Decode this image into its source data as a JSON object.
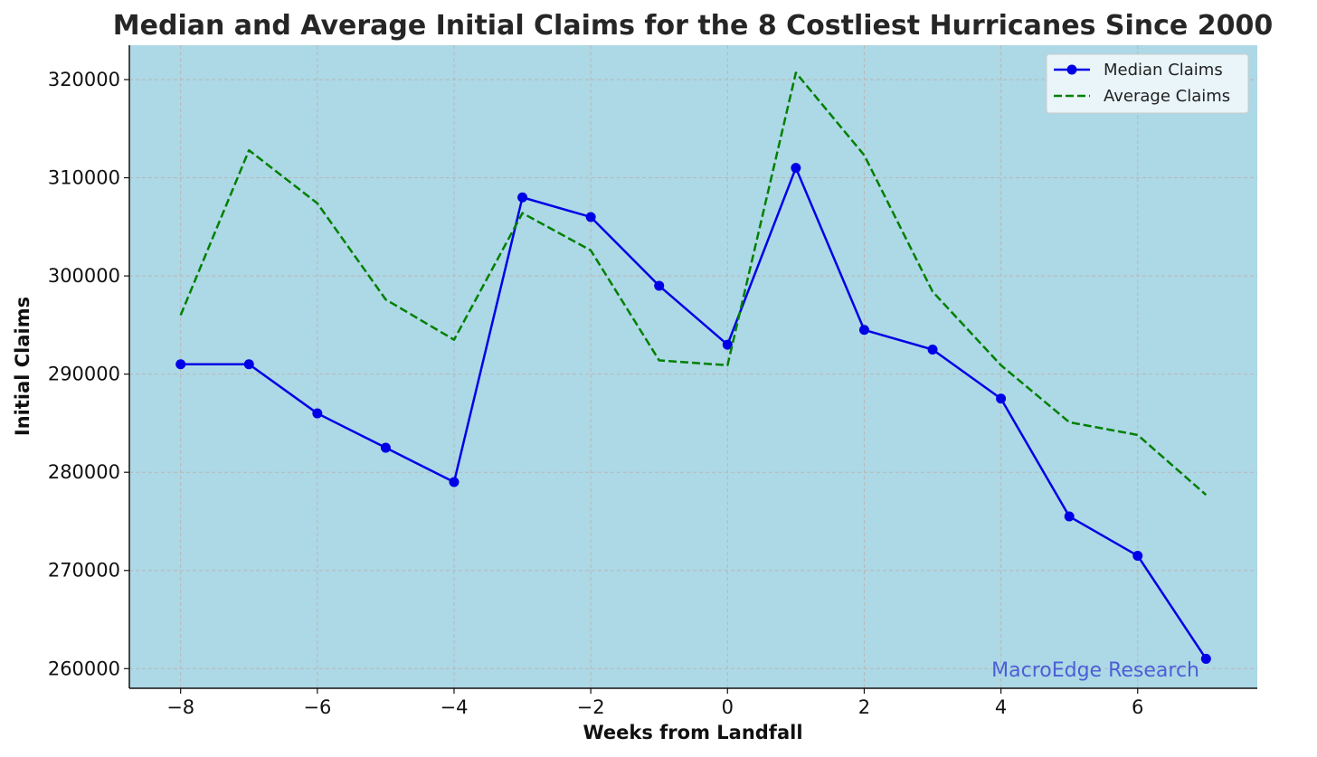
{
  "chart_data": {
    "type": "line",
    "title": "Median and Average Initial Claims for the 8 Costliest Hurricanes Since 2000",
    "xlabel": "Weeks from Landfall",
    "ylabel": "Initial Claims",
    "x": [
      -8,
      -7,
      -6,
      -5,
      -4,
      -3,
      -2,
      -1,
      0,
      1,
      2,
      3,
      4,
      5,
      6,
      7
    ],
    "series": [
      {
        "name": "Median Claims",
        "color": "#0000e6",
        "style": "solid-with-markers",
        "values": [
          291000,
          291000,
          286000,
          282500,
          279000,
          308000,
          306000,
          299000,
          293000,
          311000,
          294500,
          292500,
          287500,
          275500,
          271500,
          261000
        ]
      },
      {
        "name": "Average Claims",
        "color": "#008000",
        "style": "dashed",
        "values": [
          296000,
          312800,
          307400,
          297600,
          293500,
          306400,
          302600,
          291400,
          290900,
          320700,
          312300,
          298400,
          290900,
          285100,
          283800,
          277700
        ]
      }
    ],
    "xticks": [
      "−8",
      "−6",
      "−4",
      "−2",
      "0",
      "2",
      "4",
      "6"
    ],
    "xtick_values": [
      -8,
      -6,
      -4,
      -2,
      0,
      2,
      4,
      6
    ],
    "yticks": [
      "260000",
      "270000",
      "280000",
      "290000",
      "300000",
      "310000",
      "320000"
    ],
    "ytick_values": [
      260000,
      270000,
      280000,
      290000,
      300000,
      310000,
      320000
    ],
    "xlim": [
      -8.75,
      7.75
    ],
    "ylim": [
      258000,
      323500
    ],
    "grid": true,
    "legend_position": "top-right",
    "background_color": "#add8e6",
    "annotation": {
      "text": "MacroEdge Research",
      "color": "#4b5fd6"
    }
  }
}
